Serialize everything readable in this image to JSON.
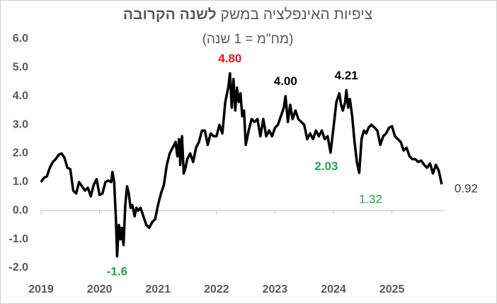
{
  "chart_data": {
    "type": "line",
    "title": [
      "ציפיות האינפלציה במשק",
      "לשנה הקרובה"
    ],
    "subtitle": "(מח\"מ = 1 שנה)",
    "x": [
      2019.0,
      2019.05,
      2019.1,
      2019.15,
      2019.2,
      2019.25,
      2019.3,
      2019.35,
      2019.4,
      2019.45,
      2019.5,
      2019.55,
      2019.6,
      2019.65,
      2019.7,
      2019.75,
      2019.8,
      2019.85,
      2019.9,
      2019.95,
      2020.0,
      2020.05,
      2020.1,
      2020.15,
      2020.2,
      2020.22,
      2020.25,
      2020.28,
      2020.3,
      2020.33,
      2020.36,
      2020.38,
      2020.41,
      2020.44,
      2020.47,
      2020.5,
      2020.53,
      2020.56,
      2020.6,
      2020.63,
      2020.66,
      2020.7,
      2020.75,
      2020.8,
      2020.85,
      2020.9,
      2020.95,
      2021.0,
      2021.05,
      2021.1,
      2021.15,
      2021.2,
      2021.25,
      2021.3,
      2021.33,
      2021.36,
      2021.38,
      2021.41,
      2021.44,
      2021.47,
      2021.5,
      2021.55,
      2021.6,
      2021.65,
      2021.7,
      2021.75,
      2021.8,
      2021.85,
      2021.9,
      2021.95,
      2022.0,
      2022.05,
      2022.1,
      2022.15,
      2022.2,
      2022.23,
      2022.26,
      2022.29,
      2022.32,
      2022.35,
      2022.38,
      2022.41,
      2022.44,
      2022.47,
      2022.5,
      2022.55,
      2022.6,
      2022.65,
      2022.7,
      2022.75,
      2022.8,
      2022.85,
      2022.9,
      2022.95,
      2023.0,
      2023.05,
      2023.1,
      2023.15,
      2023.18,
      2023.22,
      2023.26,
      2023.3,
      2023.35,
      2023.4,
      2023.45,
      2023.5,
      2023.55,
      2023.6,
      2023.65,
      2023.7,
      2023.75,
      2023.8,
      2023.85,
      2023.9,
      2023.95,
      2024.0,
      2024.05,
      2024.1,
      2024.13,
      2024.16,
      2024.2,
      2024.22,
      2024.25,
      2024.28,
      2024.32,
      2024.36,
      2024.4,
      2024.44,
      2024.48,
      2024.52,
      2024.56,
      2024.6,
      2024.65,
      2024.7,
      2024.75,
      2024.8,
      2024.85,
      2024.9,
      2024.95,
      2025.0,
      2025.05,
      2025.1,
      2025.15,
      2025.2,
      2025.25,
      2025.3,
      2025.35,
      2025.4,
      2025.45,
      2025.5,
      2025.55,
      2025.6,
      2025.65,
      2025.7,
      2025.75,
      2025.8,
      2025.85
    ],
    "series": [
      {
        "name": "ציפיות",
        "color": "#000000",
        "values": [
          1.0,
          1.15,
          1.2,
          1.5,
          1.7,
          1.8,
          1.95,
          2.0,
          1.85,
          1.5,
          1.45,
          0.7,
          0.6,
          1.0,
          0.85,
          0.7,
          0.8,
          0.5,
          0.9,
          1.1,
          0.55,
          0.6,
          1.0,
          1.05,
          1.0,
          1.35,
          1.0,
          -0.3,
          -1.6,
          -0.5,
          -1.0,
          -0.6,
          -1.2,
          0.2,
          0.85,
          0.6,
          0.1,
          0.2,
          -0.2,
          0.1,
          0.0,
          0.1,
          -0.2,
          -0.5,
          -0.6,
          -0.4,
          -0.3,
          0.2,
          0.6,
          0.9,
          1.6,
          2.0,
          2.2,
          2.4,
          1.9,
          2.5,
          1.6,
          2.6,
          1.3,
          1.5,
          1.8,
          2.0,
          1.7,
          2.2,
          2.4,
          2.8,
          2.8,
          2.3,
          2.7,
          2.6,
          2.6,
          3.0,
          2.7,
          3.8,
          4.3,
          4.8,
          3.6,
          4.6,
          3.5,
          4.3,
          3.8,
          4.1,
          3.3,
          3.5,
          2.3,
          2.8,
          3.2,
          3.1,
          3.2,
          2.6,
          3.2,
          2.6,
          2.8,
          2.6,
          2.9,
          3.0,
          3.3,
          3.6,
          4.0,
          3.1,
          3.7,
          3.2,
          3.5,
          3.2,
          3.1,
          3.0,
          2.5,
          2.7,
          2.5,
          2.8,
          2.6,
          2.8,
          2.5,
          2.6,
          2.03,
          2.9,
          3.8,
          4.1,
          3.7,
          3.5,
          3.8,
          4.21,
          3.6,
          3.9,
          3.3,
          2.4,
          1.7,
          1.32,
          2.5,
          2.8,
          2.7,
          2.9,
          3.0,
          2.9,
          2.8,
          2.3,
          2.6,
          2.7,
          2.9,
          2.95,
          2.6,
          2.5,
          2.4,
          2.1,
          2.2,
          1.9,
          1.8,
          1.8,
          1.7,
          1.75,
          1.6,
          1.5,
          1.65,
          1.3,
          1.6,
          1.4,
          0.92
        ]
      }
    ],
    "annotations": [
      {
        "label": "4.80",
        "x": 2022.23,
        "value": 4.8,
        "color": "#e3191b",
        "position": "above"
      },
      {
        "label": "4.00",
        "x": 2023.18,
        "value": 4.0,
        "color": "#000000",
        "position": "above"
      },
      {
        "label": "4.21",
        "x": 2024.22,
        "value": 4.21,
        "color": "#000000",
        "position": "above"
      },
      {
        "label": "2.03",
        "x": 2023.95,
        "value": 2.03,
        "color": "#21a54a",
        "position": "below-left"
      },
      {
        "label": "1.32",
        "x": 2024.44,
        "value": 1.32,
        "color": "#21a54a",
        "position": "below-right"
      },
      {
        "label": "-1.6",
        "x": 2020.3,
        "value": -1.6,
        "color": "#21a54a",
        "position": "below"
      },
      {
        "label": "0.92",
        "x": 2025.85,
        "value": 0.92,
        "color": "#404040",
        "position": "right"
      }
    ],
    "xlim": [
      2019,
      2025.9
    ],
    "xticks": [
      2019,
      2020,
      2021,
      2022,
      2023,
      2024,
      2025
    ],
    "ylim": [
      -2,
      6
    ],
    "yticks": [
      {
        "value": 6,
        "label": "6.0"
      },
      {
        "value": 5,
        "label": "5.0"
      },
      {
        "value": 4,
        "label": "4.0"
      },
      {
        "value": 3,
        "label": "3.0"
      },
      {
        "value": 2,
        "label": "2.0"
      },
      {
        "value": 1,
        "label": "1.0"
      },
      {
        "value": 0,
        "label": "0.0"
      },
      {
        "value": -1,
        "label": "-1.0"
      },
      {
        "value": -2,
        "label": "-2.0"
      }
    ],
    "grid": false
  }
}
